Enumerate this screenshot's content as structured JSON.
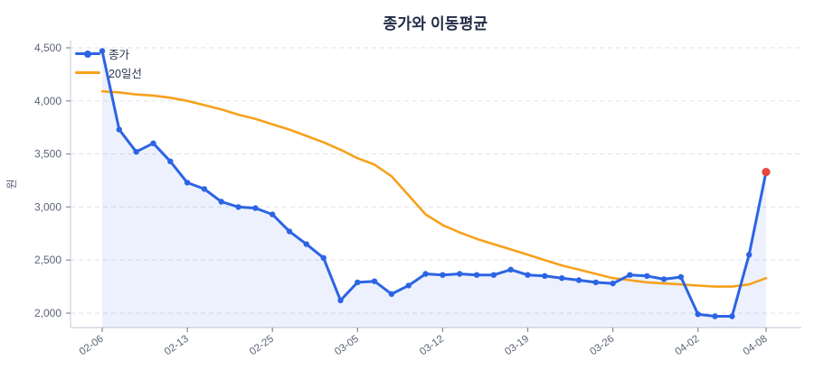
{
  "title": "종가와 이동평균",
  "legend": {
    "items": [
      {
        "label": "종가",
        "color": "#2c64e4",
        "marker": "circle"
      },
      {
        "label": "20일선",
        "color": "#f7a11c",
        "marker": "none"
      }
    ]
  },
  "y_axis": {
    "label": "원",
    "tick_labels": [
      "4,500",
      "4,000",
      "3,500",
      "3,000",
      "2,500",
      "2,000"
    ]
  },
  "x_axis": {
    "tick_labels": [
      "02-06",
      "02-13",
      "02-25",
      "03-05",
      "03-12",
      "03-19",
      "03-26",
      "04-02",
      "04-08"
    ]
  },
  "colors": {
    "close_line": "#2c64e4",
    "ma_line": "#f7a11c",
    "last_point": "#e8473f",
    "area_fill": "rgba(44,100,228,0.09)",
    "grid": "#e4e7ee",
    "spine": "#ccd2dd",
    "tick": "#8a93a6",
    "tick_text": "#5b6478",
    "title_text": "#1f2a44",
    "legend_text": "#2d3650"
  },
  "chart_data": {
    "type": "line",
    "title": "종가와 이동평균",
    "ylabel": "원",
    "xlabel": "",
    "grid": "horizontal-dashed",
    "legend_position": "upper-left",
    "x_point_count": 40,
    "x_ticks": [
      {
        "index": 0,
        "label": "02-06"
      },
      {
        "index": 5,
        "label": "02-13"
      },
      {
        "index": 10,
        "label": "02-25"
      },
      {
        "index": 15,
        "label": "03-05"
      },
      {
        "index": 20,
        "label": "03-12"
      },
      {
        "index": 25,
        "label": "03-19"
      },
      {
        "index": 30,
        "label": "03-26"
      },
      {
        "index": 35,
        "label": "04-02"
      },
      {
        "index": 39,
        "label": "04-08"
      }
    ],
    "yticks": [
      4500,
      4000,
      3500,
      3000,
      2500,
      2000
    ],
    "ylim": [
      1880,
      4560
    ],
    "series": [
      {
        "name": "종가",
        "color": "#2c64e4",
        "marker": "circle",
        "fill_under": true,
        "last_point_highlight_color": "#e8473f",
        "values": [
          4470,
          3730,
          3520,
          3600,
          3430,
          3230,
          3170,
          3050,
          3000,
          2990,
          2930,
          2770,
          2650,
          2520,
          2120,
          2290,
          2300,
          2180,
          2260,
          2370,
          2360,
          2370,
          2360,
          2360,
          2410,
          2360,
          2350,
          2330,
          2310,
          2290,
          2280,
          2360,
          2350,
          2320,
          2340,
          1990,
          1970,
          1970,
          2550,
          3330
        ]
      },
      {
        "name": "20일선",
        "color": "#f7a11c",
        "marker": "none",
        "fill_under": false,
        "values": [
          4090,
          4080,
          4060,
          4050,
          4030,
          4000,
          3960,
          3920,
          3870,
          3830,
          3780,
          3730,
          3670,
          3610,
          3540,
          3460,
          3400,
          3290,
          3110,
          2930,
          2830,
          2760,
          2700,
          2650,
          2600,
          2550,
          2500,
          2450,
          2410,
          2370,
          2330,
          2310,
          2290,
          2280,
          2270,
          2260,
          2250,
          2250,
          2270,
          2330
        ]
      }
    ]
  }
}
